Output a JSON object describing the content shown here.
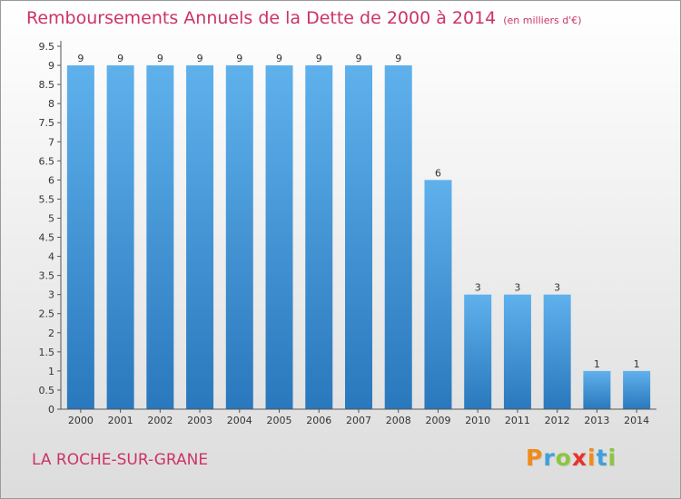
{
  "header": {
    "title": "Remboursements Annuels de la Dette de 2000 à 2014",
    "unit": "(en milliers d'€)"
  },
  "footer": {
    "commune": "LA ROCHE-SUR-GRANE",
    "logo": [
      "P",
      "r",
      "o",
      "x",
      "i",
      "t",
      "i"
    ],
    "logo_colors": [
      "#f18b17",
      "#3ea0dc",
      "#8cc63e",
      "#e8332b",
      "#f18b17",
      "#3ea0dc",
      "#8cc63e"
    ]
  },
  "chart_data": {
    "type": "bar",
    "title": "Remboursements Annuels de la Dette de 2000 à 2014",
    "xlabel": "",
    "ylabel": "en milliers d'€",
    "categories": [
      "2000",
      "2001",
      "2002",
      "2003",
      "2004",
      "2005",
      "2006",
      "2007",
      "2008",
      "2009",
      "2010",
      "2011",
      "2012",
      "2013",
      "2014"
    ],
    "values": [
      9,
      9,
      9,
      9,
      9,
      9,
      9,
      9,
      9,
      6,
      3,
      3,
      3,
      1,
      1
    ],
    "data_labels": [
      "9",
      "9",
      "9",
      "9",
      "9",
      "9",
      "9",
      "9",
      "9",
      "6",
      "3",
      "3",
      "3",
      "1",
      "1"
    ],
    "yticks": [
      0,
      0.5,
      1,
      1.5,
      2,
      2.5,
      3,
      3.5,
      4,
      4.5,
      5,
      5.5,
      6,
      6.5,
      7,
      7.5,
      8,
      8.5,
      9,
      9.5
    ],
    "ytick_labels": [
      "0",
      "0.5",
      "1",
      "1.5",
      "2",
      "2.5",
      "3",
      "3.5",
      "4",
      "4.5",
      "5",
      "5.5",
      "6",
      "6.5",
      "7",
      "7.5",
      "8",
      "8.5",
      "9",
      "9.5"
    ],
    "ylim": [
      0,
      9.5
    ],
    "grid": false,
    "bar_color": "#4ba3e3"
  }
}
